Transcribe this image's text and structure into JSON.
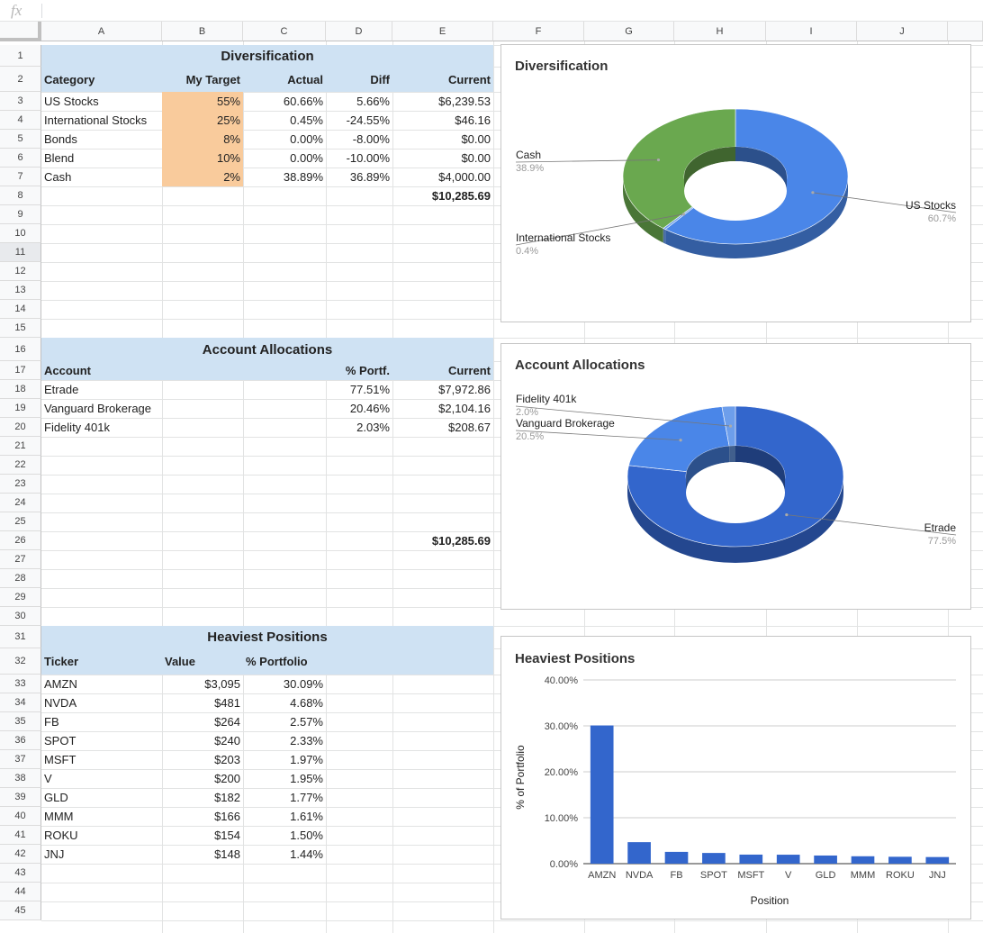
{
  "formula_bar": {
    "fx_symbol": "fx",
    "value": ""
  },
  "columns": [
    "A",
    "B",
    "C",
    "D",
    "E",
    "F",
    "G",
    "H",
    "I",
    "J"
  ],
  "rows": [
    "1",
    "2",
    "3",
    "4",
    "5",
    "6",
    "7",
    "8",
    "9",
    "10",
    "11",
    "12",
    "13",
    "14",
    "15",
    "16",
    "17",
    "18",
    "19",
    "20",
    "21",
    "22",
    "23",
    "24",
    "25",
    "26",
    "27",
    "28",
    "29",
    "30",
    "31",
    "32",
    "33",
    "34",
    "35",
    "36",
    "37",
    "38",
    "39",
    "40",
    "41",
    "42",
    "43",
    "44",
    "45"
  ],
  "diversification": {
    "title": "Diversification",
    "headers": {
      "category": "Category",
      "target": "My Target",
      "actual": "Actual",
      "diff": "Diff",
      "current": "Current"
    },
    "rows": [
      {
        "category": "US Stocks",
        "target": "55%",
        "actual": "60.66%",
        "diff": "5.66%",
        "current": "$6,239.53"
      },
      {
        "category": "International Stocks",
        "target": "25%",
        "actual": "0.45%",
        "diff": "-24.55%",
        "current": "$46.16"
      },
      {
        "category": "Bonds",
        "target": "8%",
        "actual": "0.00%",
        "diff": "-8.00%",
        "current": "$0.00"
      },
      {
        "category": "Blend",
        "target": "10%",
        "actual": "0.00%",
        "diff": "-10.00%",
        "current": "$0.00"
      },
      {
        "category": "Cash",
        "target": "2%",
        "actual": "38.89%",
        "diff": "36.89%",
        "current": "$4,000.00"
      }
    ],
    "total": "$10,285.69"
  },
  "accounts": {
    "title": "Account Allocations",
    "headers": {
      "account": "Account",
      "pct": "% Portf.",
      "current": "Current"
    },
    "rows": [
      {
        "account": "Etrade",
        "pct": "77.51%",
        "current": "$7,972.86"
      },
      {
        "account": "Vanguard Brokerage",
        "pct": "20.46%",
        "current": "$2,104.16"
      },
      {
        "account": "Fidelity 401k",
        "pct": "2.03%",
        "current": "$208.67"
      }
    ],
    "total": "$10,285.69"
  },
  "positions": {
    "title": "Heaviest Positions",
    "headers": {
      "ticker": "Ticker",
      "value": "Value",
      "pct": "% Portfolio"
    },
    "rows": [
      {
        "ticker": "AMZN",
        "value": "$3,095",
        "pct": "30.09%"
      },
      {
        "ticker": "NVDA",
        "value": "$481",
        "pct": "4.68%"
      },
      {
        "ticker": "FB",
        "value": "$264",
        "pct": "2.57%"
      },
      {
        "ticker": "SPOT",
        "value": "$240",
        "pct": "2.33%"
      },
      {
        "ticker": "MSFT",
        "value": "$203",
        "pct": "1.97%"
      },
      {
        "ticker": "V",
        "value": "$200",
        "pct": "1.95%"
      },
      {
        "ticker": "GLD",
        "value": "$182",
        "pct": "1.77%"
      },
      {
        "ticker": "MMM",
        "value": "$166",
        "pct": "1.61%"
      },
      {
        "ticker": "ROKU",
        "value": "$154",
        "pct": "1.50%"
      },
      {
        "ticker": "JNJ",
        "value": "$148",
        "pct": "1.44%"
      }
    ]
  },
  "colors": {
    "header_band": "#cfe2f3",
    "target_fill": "#f9cb9c",
    "blue": "#4a86e8",
    "dark_blue": "#3366cc",
    "green": "#6aa84f",
    "light_blue": "#6d9eeb"
  },
  "chart_data": [
    {
      "type": "pie",
      "style": "3d-donut",
      "title": "Diversification",
      "slices": [
        {
          "label": "US Stocks",
          "value": 60.7,
          "pct_label": "60.7%",
          "color": "#4a86e8"
        },
        {
          "label": "International Stocks",
          "value": 0.4,
          "pct_label": "0.4%",
          "color": "#6d9eeb"
        },
        {
          "label": "Cash",
          "value": 38.9,
          "pct_label": "38.9%",
          "color": "#6aa84f"
        }
      ]
    },
    {
      "type": "pie",
      "style": "3d-donut",
      "title": "Account Allocations",
      "slices": [
        {
          "label": "Etrade",
          "value": 77.5,
          "pct_label": "77.5%",
          "color": "#3366cc"
        },
        {
          "label": "Vanguard Brokerage",
          "value": 20.5,
          "pct_label": "20.5%",
          "color": "#4a86e8"
        },
        {
          "label": "Fidelity 401k",
          "value": 2.0,
          "pct_label": "2.0%",
          "color": "#6d9eeb"
        }
      ]
    },
    {
      "type": "bar",
      "title": "Heaviest Positions",
      "xlabel": "Position",
      "ylabel": "% of Portfolio",
      "categories": [
        "AMZN",
        "NVDA",
        "FB",
        "SPOT",
        "MSFT",
        "V",
        "GLD",
        "MMM",
        "ROKU",
        "JNJ"
      ],
      "values": [
        30.09,
        4.68,
        2.57,
        2.33,
        1.97,
        1.95,
        1.77,
        1.61,
        1.5,
        1.44
      ],
      "ylim": [
        0,
        40
      ],
      "yticks": [
        "0.00%",
        "10.00%",
        "20.00%",
        "30.00%",
        "40.00%"
      ],
      "grid": true,
      "color": "#3366cc"
    }
  ]
}
